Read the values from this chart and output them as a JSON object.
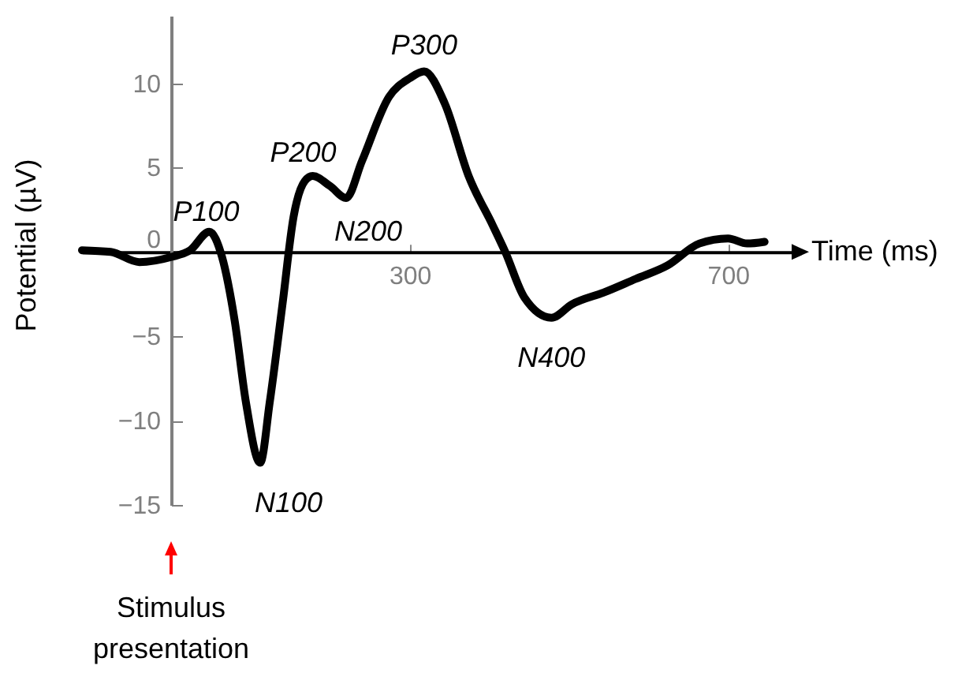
{
  "chart_data": {
    "type": "line",
    "xlabel": "Time (ms)",
    "ylabel": "Potential (µV)",
    "x": [
      -112,
      -76,
      -40,
      0,
      24,
      48,
      64,
      80,
      94,
      112,
      124,
      140,
      154,
      168,
      178,
      200,
      220,
      240,
      274,
      300,
      318,
      344,
      374,
      404,
      420,
      444,
      478,
      504,
      544,
      584,
      624,
      664,
      700,
      724,
      746
    ],
    "series": [
      {
        "color": "#000000",
        "values": [
          0.1,
          0,
          -0.6,
          -0.3,
          0.1,
          1.2,
          -0.3,
          -4.1,
          -8.9,
          -12.5,
          -8.9,
          -3.1,
          2.1,
          4.2,
          4.5,
          3.9,
          3.2,
          5.4,
          9.2,
          10.3,
          10.7,
          8.8,
          4.5,
          1.6,
          0,
          -2.7,
          -3.9,
          -3.1,
          -2.4,
          -1.6,
          -0.8,
          0.5,
          0.8,
          0.5,
          0.6
        ]
      }
    ],
    "xlim": [
      -112,
      780
    ],
    "ylim": [
      -15,
      14
    ],
    "xticks": [
      300,
      700
    ],
    "yticks": [
      -15,
      -10,
      -5,
      0,
      5,
      10
    ],
    "grid": false,
    "marker": "none",
    "line_style": "solid",
    "annotations": [
      {
        "text": "P100",
        "x": 48,
        "y": 1.2
      },
      {
        "text": "N100",
        "x": 112,
        "y": -12.5
      },
      {
        "text": "P200",
        "x": 178,
        "y": 4.5
      },
      {
        "text": "N200",
        "x": 220,
        "y": 3.2
      },
      {
        "text": "P300",
        "x": 318,
        "y": 10.7
      },
      {
        "text": "N400",
        "x": 478,
        "y": -3.9
      },
      "Stimulus presentation"
    ]
  }
}
